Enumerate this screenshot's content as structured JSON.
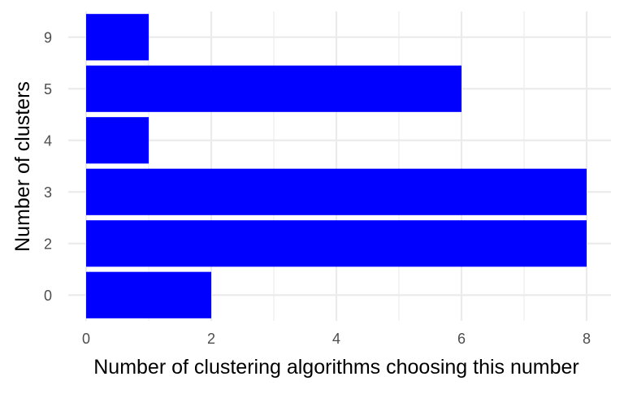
{
  "chart_data": {
    "type": "bar",
    "orientation": "horizontal",
    "title": "",
    "xlabel": "Number of clustering algorithms choosing this number",
    "ylabel": "Number of clusters",
    "categories": [
      "0",
      "2",
      "3",
      "4",
      "5",
      "9"
    ],
    "values": [
      2,
      8,
      8,
      1,
      6,
      1
    ],
    "xlim": [
      0,
      8
    ],
    "xticks": [
      0,
      2,
      4,
      6,
      8
    ],
    "grid": true,
    "legend": "none",
    "bar_color": "#0000ff",
    "grid_color": "#ebebeb",
    "background": "#ffffff"
  }
}
